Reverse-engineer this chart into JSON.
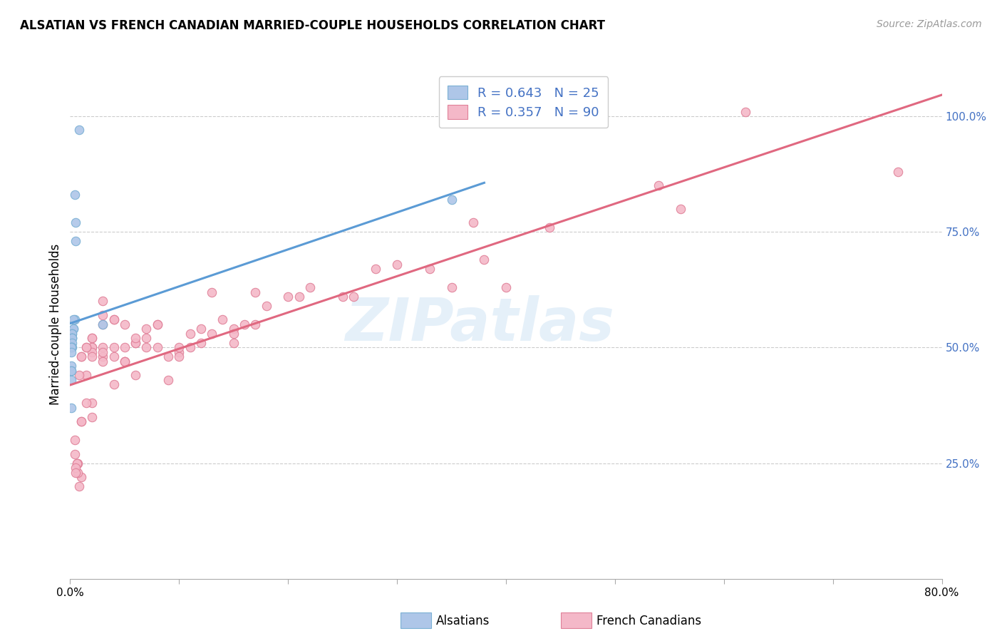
{
  "title": "ALSATIAN VS FRENCH CANADIAN MARRIED-COUPLE HOUSEHOLDS CORRELATION CHART",
  "source": "Source: ZipAtlas.com",
  "ylabel": "Married-couple Households",
  "watermark": "ZIPatlas",
  "alsatian_R": 0.643,
  "alsatian_N": 25,
  "french_canadian_R": 0.357,
  "french_canadian_N": 90,
  "color_alsatian_fill": "#aec6e8",
  "color_alsatian_edge": "#7ab0d4",
  "color_alsatian_line": "#5b9bd5",
  "color_french_fill": "#f4b8c8",
  "color_french_edge": "#e08098",
  "color_french_line": "#e06880",
  "color_legend_text": "#4472c4",
  "color_right_tick": "#4472c4",
  "alsatian_x": [
    0.008,
    0.005,
    0.005,
    0.004,
    0.004,
    0.003,
    0.003,
    0.003,
    0.002,
    0.002,
    0.002,
    0.002,
    0.002,
    0.002,
    0.002,
    0.001,
    0.001,
    0.001,
    0.001,
    0.001,
    0.001,
    0.001,
    0.001,
    0.35,
    0.03
  ],
  "alsatian_y": [
    0.97,
    0.77,
    0.73,
    0.83,
    0.56,
    0.56,
    0.54,
    0.54,
    0.53,
    0.53,
    0.52,
    0.52,
    0.52,
    0.51,
    0.5,
    0.5,
    0.5,
    0.49,
    0.46,
    0.45,
    0.43,
    0.45,
    0.37,
    0.82,
    0.55
  ],
  "french_x": [
    0.62,
    0.76,
    0.54,
    0.56,
    0.44,
    0.38,
    0.4,
    0.37,
    0.35,
    0.33,
    0.3,
    0.28,
    0.26,
    0.25,
    0.22,
    0.21,
    0.2,
    0.18,
    0.17,
    0.17,
    0.16,
    0.15,
    0.15,
    0.15,
    0.14,
    0.13,
    0.13,
    0.12,
    0.12,
    0.11,
    0.11,
    0.1,
    0.1,
    0.1,
    0.09,
    0.09,
    0.08,
    0.08,
    0.08,
    0.07,
    0.07,
    0.07,
    0.06,
    0.06,
    0.06,
    0.06,
    0.05,
    0.05,
    0.05,
    0.05,
    0.05,
    0.04,
    0.04,
    0.04,
    0.04,
    0.04,
    0.03,
    0.03,
    0.03,
    0.03,
    0.03,
    0.03,
    0.03,
    0.02,
    0.02,
    0.02,
    0.02,
    0.02,
    0.02,
    0.02,
    0.02,
    0.015,
    0.015,
    0.015,
    0.015,
    0.01,
    0.01,
    0.01,
    0.01,
    0.01,
    0.008,
    0.008,
    0.007,
    0.007,
    0.006,
    0.006,
    0.005,
    0.005,
    0.004,
    0.004
  ],
  "french_y": [
    1.01,
    0.88,
    0.85,
    0.8,
    0.76,
    0.69,
    0.63,
    0.77,
    0.63,
    0.67,
    0.68,
    0.67,
    0.61,
    0.61,
    0.63,
    0.61,
    0.61,
    0.59,
    0.62,
    0.55,
    0.55,
    0.54,
    0.53,
    0.51,
    0.56,
    0.62,
    0.53,
    0.54,
    0.51,
    0.53,
    0.5,
    0.49,
    0.48,
    0.5,
    0.43,
    0.48,
    0.5,
    0.55,
    0.55,
    0.52,
    0.5,
    0.54,
    0.51,
    0.51,
    0.52,
    0.44,
    0.47,
    0.47,
    0.5,
    0.55,
    0.47,
    0.48,
    0.56,
    0.56,
    0.42,
    0.5,
    0.5,
    0.55,
    0.48,
    0.57,
    0.6,
    0.49,
    0.47,
    0.5,
    0.52,
    0.52,
    0.5,
    0.49,
    0.48,
    0.35,
    0.38,
    0.5,
    0.5,
    0.44,
    0.38,
    0.48,
    0.48,
    0.34,
    0.22,
    0.34,
    0.2,
    0.44,
    0.23,
    0.25,
    0.25,
    0.25,
    0.24,
    0.23,
    0.3,
    0.27
  ],
  "xmin": 0.0,
  "xmax": 0.8,
  "ymin": 0.0,
  "ymax": 1.1,
  "yticks": [
    0.25,
    0.5,
    0.75,
    1.0
  ],
  "ytick_labels": [
    "25.0%",
    "50.0%",
    "75.0%",
    "100.0%"
  ],
  "xticks": [
    0.0,
    0.1,
    0.2,
    0.3,
    0.4,
    0.5,
    0.6,
    0.7,
    0.8
  ]
}
